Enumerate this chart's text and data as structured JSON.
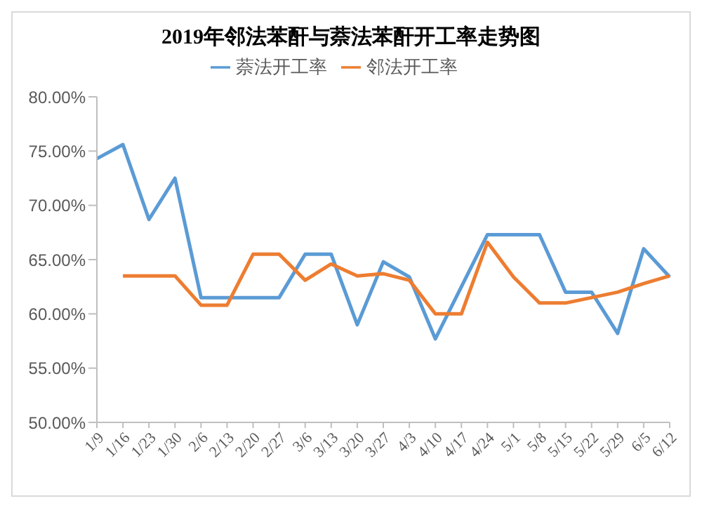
{
  "chart_data": {
    "type": "line",
    "title": "2019年邻法苯酐与萘法苯酐开工率走势图",
    "categories": [
      "1/9",
      "1/16",
      "1/23",
      "1/30",
      "2/6",
      "2/13",
      "2/20",
      "2/27",
      "3/6",
      "3/13",
      "3/20",
      "3/27",
      "4/3",
      "4/10",
      "4/17",
      "4/24",
      "5/1",
      "5/8",
      "5/15",
      "5/22",
      "5/29",
      "6/5",
      "6/12"
    ],
    "series": [
      {
        "name": "萘法开工率",
        "color": "#5b9bd5",
        "values": [
          74.3,
          75.6,
          68.7,
          72.5,
          61.5,
          61.5,
          61.5,
          61.5,
          65.5,
          65.5,
          59,
          64.8,
          63.4,
          57.7,
          62.5,
          67.3,
          67.3,
          67.3,
          62,
          62,
          58.2,
          66,
          63.4
        ]
      },
      {
        "name": "邻法开工率",
        "color": "#ed7d31",
        "values": [
          null,
          63.5,
          63.5,
          63.5,
          60.8,
          60.8,
          65.5,
          65.5,
          63.1,
          64.6,
          63.5,
          63.7,
          63.1,
          60,
          60,
          66.6,
          63.4,
          61,
          61,
          61.5,
          62,
          62.8,
          63.5
        ]
      }
    ],
    "ylim": [
      50,
      80
    ],
    "yticks": [
      {
        "value": 50,
        "label": "50.00%"
      },
      {
        "value": 55,
        "label": "55.00%"
      },
      {
        "value": 60,
        "label": "60.00%"
      },
      {
        "value": 65,
        "label": "65.00%"
      },
      {
        "value": 70,
        "label": "70.00%"
      },
      {
        "value": 75,
        "label": "75.00%"
      },
      {
        "value": 80,
        "label": "80.00%"
      }
    ],
    "legend": "top",
    "marker": "none",
    "line_style": "solid"
  }
}
